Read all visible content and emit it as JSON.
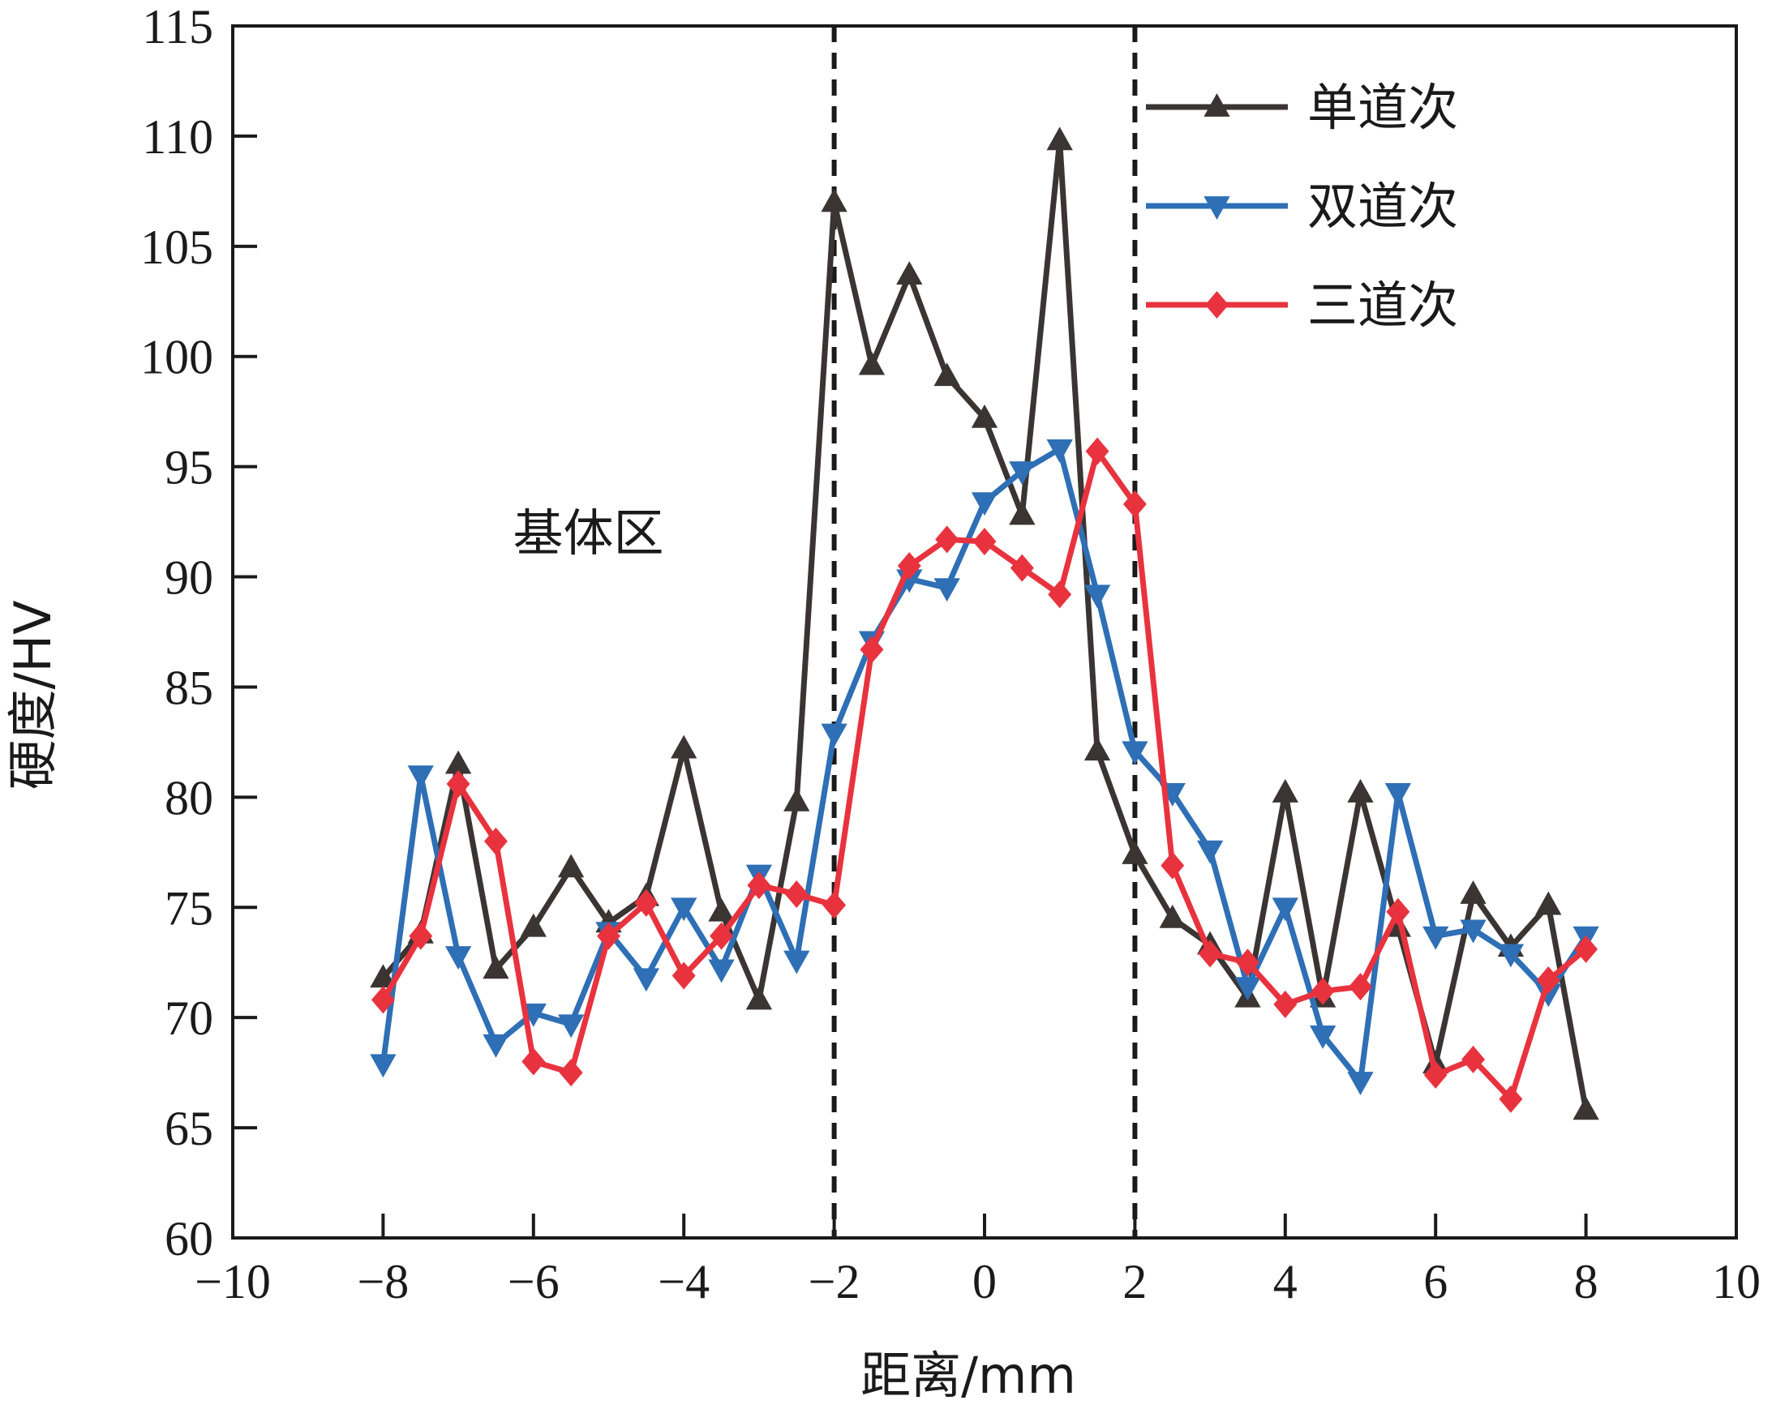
{
  "chart_data": {
    "type": "line",
    "xlabel": "距离/mm",
    "ylabel": "硬度/HV",
    "xlim": [
      -10,
      10
    ],
    "ylim": [
      60,
      115
    ],
    "xticks": [
      -10,
      -8,
      -6,
      -4,
      -2,
      0,
      2,
      4,
      6,
      8,
      10
    ],
    "xtick_labels": [
      "−10",
      "−8",
      "−6",
      "−4",
      "−2",
      "0",
      "2",
      "4",
      "6",
      "8",
      "10"
    ],
    "yticks": [
      60,
      65,
      70,
      75,
      80,
      85,
      90,
      95,
      100,
      105,
      110,
      115
    ],
    "ytick_labels": [
      "60",
      "65",
      "70",
      "75",
      "80",
      "85",
      "90",
      "95",
      "100",
      "105",
      "110",
      "115"
    ],
    "grid": false,
    "legend_position": "top-right",
    "reference_lines_x": [
      -2,
      2
    ],
    "annotations": [
      {
        "text": "基体区",
        "x": -5,
        "y": 92
      }
    ],
    "x": [
      -8,
      -7.5,
      -7,
      -6.5,
      -6,
      -5.5,
      -5,
      -4.5,
      -4,
      -3.5,
      -3,
      -2.5,
      -2,
      -1.5,
      -1,
      -0.5,
      0,
      0.5,
      1,
      1.5,
      2,
      2.5,
      3,
      3.5,
      4,
      4.5,
      5,
      5.5,
      6,
      6.5,
      7,
      7.5,
      8
    ],
    "series": [
      {
        "name": "单道次",
        "color": "#3a3532",
        "marker": "triangle-up",
        "values": [
          71.8,
          73.8,
          81.5,
          72.2,
          74.1,
          76.8,
          74.3,
          75.5,
          82.2,
          74.8,
          70.8,
          79.8,
          107.0,
          99.6,
          103.7,
          99.1,
          97.2,
          92.8,
          109.8,
          82.1,
          77.4,
          74.5,
          73.3,
          70.9,
          80.2,
          70.9,
          80.2,
          74.1,
          67.9,
          75.6,
          73.2,
          75.1,
          65.8
        ]
      },
      {
        "name": "双道次",
        "color": "#2e6fb5",
        "marker": "triangle-down",
        "values": [
          67.9,
          81.0,
          72.8,
          68.8,
          70.2,
          69.7,
          73.9,
          71.8,
          75.0,
          72.2,
          76.5,
          72.6,
          82.9,
          87.1,
          89.9,
          89.5,
          93.4,
          94.8,
          95.8,
          89.2,
          82.1,
          80.2,
          77.6,
          71.4,
          75.0,
          69.2,
          67.1,
          80.2,
          73.7,
          74.0,
          72.9,
          71.1,
          73.7
        ]
      },
      {
        "name": "三道次",
        "color": "#e8333f",
        "marker": "diamond",
        "values": [
          70.8,
          73.7,
          80.6,
          78.0,
          68.0,
          67.5,
          73.7,
          75.2,
          71.9,
          73.7,
          76.0,
          75.6,
          75.1,
          86.7,
          90.5,
          91.7,
          91.6,
          90.4,
          89.2,
          95.7,
          93.3,
          76.9,
          72.9,
          72.5,
          70.6,
          71.2,
          71.4,
          74.8,
          67.4,
          68.1,
          66.3,
          71.7,
          73.1
        ]
      }
    ]
  }
}
